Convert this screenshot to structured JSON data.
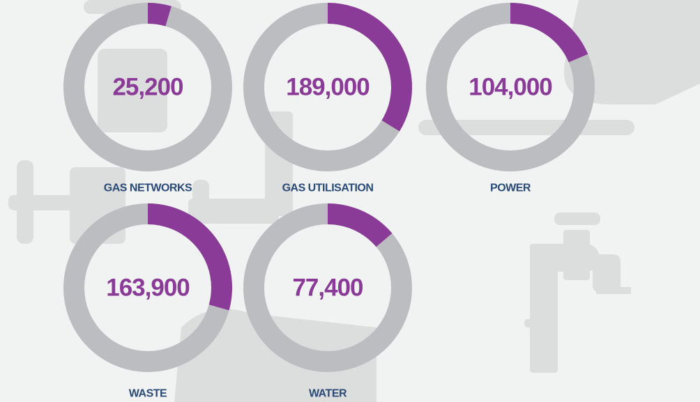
{
  "chart_data": {
    "type": "donut",
    "categories": [
      "GAS NETWORKS",
      "GAS UTILISATION",
      "POWER",
      "WASTE",
      "WATER"
    ],
    "values": [
      25200,
      189000,
      104000,
      163900,
      77400
    ],
    "value_labels": [
      "25,200",
      "189,000",
      "104,000",
      "163,900",
      "77,400"
    ],
    "color": "#8a3a97",
    "track_color": "#bcbdc0"
  }
}
